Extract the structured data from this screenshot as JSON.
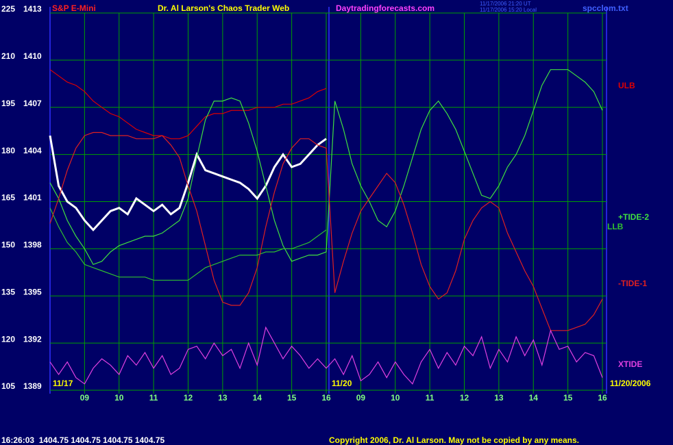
{
  "chart_data": {
    "type": "line",
    "symbol": "S&P E-Mini",
    "title": "Dr. Al Larson's Chaos Trader Web",
    "website": "Daytradingforecasts.com",
    "timestamps": [
      "11/17/2006 21:20 UT",
      "11/17/2006 15:20 Local"
    ],
    "file": "spcclom.txt",
    "dates": [
      "11/17",
      "11/20",
      "11/20/2006"
    ],
    "status": "16:26:03  1404.75 1404.75 1404.75 1404.75",
    "copyright": "Copyright 2006, Dr. Al Larson. May not be copied by any means.",
    "categories": [
      null,
      null,
      null,
      null,
      "09",
      null,
      null,
      null,
      "10",
      null,
      null,
      null,
      "11",
      null,
      null,
      null,
      "12",
      null,
      null,
      null,
      "13",
      null,
      null,
      null,
      "14",
      null,
      null,
      null,
      "15",
      null,
      null,
      null,
      "16",
      null,
      null,
      null,
      "09",
      null,
      null,
      null,
      "10",
      null,
      null,
      null,
      "11",
      null,
      null,
      null,
      "12",
      null,
      null,
      null,
      "13",
      null,
      null,
      null,
      "14",
      null,
      null,
      null,
      "15",
      null,
      null,
      null,
      "16"
    ],
    "ylim": [
      105,
      225
    ],
    "yticks": [
      105,
      120,
      135,
      150,
      165,
      180,
      195,
      210,
      225
    ],
    "y2lim": [
      1389,
      1413
    ],
    "y2ticks": [
      1389,
      1392,
      1395,
      1398,
      1401,
      1404,
      1407,
      1410,
      1413
    ],
    "grid": true,
    "series": [
      {
        "color": "#ffffff",
        "values": [
          186,
          170,
          165,
          163,
          159,
          156,
          159,
          162,
          163,
          161,
          166,
          164,
          162,
          164,
          161,
          163,
          171,
          180,
          175,
          174,
          173,
          172,
          171,
          169,
          166,
          170,
          176,
          180,
          176,
          177,
          180,
          183,
          185,
          null,
          null,
          null,
          null,
          null,
          null,
          null,
          null,
          null,
          null,
          null,
          null,
          null,
          null,
          null,
          null,
          null,
          null,
          null,
          null,
          null,
          null,
          null,
          null,
          null,
          null,
          null,
          null,
          null,
          null,
          null,
          null
        ]
      },
      {
        "name": "ULB",
        "color": "#e00000",
        "values": [
          207,
          205,
          203,
          202,
          200,
          197,
          195,
          193,
          192,
          190,
          188,
          187,
          186,
          186,
          185,
          185,
          186,
          189,
          192,
          193,
          193,
          194,
          194,
          194,
          195,
          195,
          195,
          196,
          196,
          197,
          198,
          200,
          201,
          null,
          null,
          null,
          null,
          null,
          null,
          null,
          null,
          null,
          null,
          null,
          null,
          null,
          null,
          null,
          null,
          null,
          null,
          null,
          null,
          null,
          null,
          null,
          null,
          null,
          null,
          null,
          null,
          null,
          null,
          null,
          null
        ]
      },
      {
        "name": "+TIDE-2",
        "color": "#40e040",
        "values": [
          171,
          166,
          159,
          154,
          150,
          145,
          146,
          149,
          151,
          152,
          153,
          154,
          154,
          155,
          157,
          159,
          166,
          179,
          191,
          197,
          197,
          198,
          197,
          190,
          181,
          170,
          159,
          151,
          146,
          147,
          148,
          148,
          149,
          197,
          188,
          177,
          170,
          165,
          159,
          157,
          162,
          170,
          179,
          188,
          194,
          197,
          193,
          188,
          181,
          174,
          167,
          166,
          170,
          176,
          180,
          186,
          194,
          202,
          207,
          207,
          207,
          205,
          203,
          200,
          194
        ]
      },
      {
        "name": "LLB",
        "color": "#30c030",
        "values": [
          163,
          157,
          152,
          149,
          145,
          144,
          143,
          142,
          141,
          141,
          141,
          141,
          140,
          140,
          140,
          140,
          140,
          142,
          144,
          145,
          146,
          147,
          148,
          148,
          148,
          149,
          149,
          150,
          150,
          151,
          152,
          154,
          156,
          null,
          null,
          null,
          null,
          null,
          null,
          null,
          null,
          null,
          null,
          null,
          null,
          null,
          null,
          null,
          null,
          null,
          null,
          null,
          null,
          null,
          null,
          null,
          null,
          null,
          null,
          null,
          null,
          null,
          null,
          null,
          null
        ]
      },
      {
        "name": "-TIDE-1",
        "color": "#e02020",
        "values": [
          158,
          166,
          175,
          182,
          186,
          187,
          187,
          186,
          186,
          186,
          185,
          185,
          185,
          186,
          183,
          179,
          170,
          162,
          151,
          140,
          133,
          132,
          132,
          136,
          144,
          157,
          168,
          177,
          182,
          185,
          185,
          183,
          182,
          136,
          146,
          155,
          162,
          166,
          170,
          174,
          171,
          164,
          155,
          145,
          138,
          134,
          136,
          143,
          153,
          159,
          163,
          165,
          163,
          155,
          149,
          143,
          138,
          131,
          124,
          124,
          124,
          125,
          126,
          129,
          134
        ]
      },
      {
        "name": "XTIDE",
        "color": "#e040e0",
        "values": [
          114,
          110,
          114,
          109,
          107,
          112,
          115,
          113,
          110,
          116,
          113,
          117,
          112,
          116,
          110,
          112,
          118,
          119,
          115,
          120,
          116,
          118,
          112,
          120,
          113,
          125,
          120,
          115,
          119,
          116,
          112,
          115,
          112,
          115,
          110,
          116,
          108,
          110,
          114,
          109,
          114,
          110,
          107,
          114,
          118,
          112,
          117,
          113,
          119,
          116,
          122,
          112,
          118,
          114,
          122,
          116,
          121,
          113,
          124,
          118,
          119,
          114,
          117,
          116,
          109
        ]
      }
    ]
  }
}
